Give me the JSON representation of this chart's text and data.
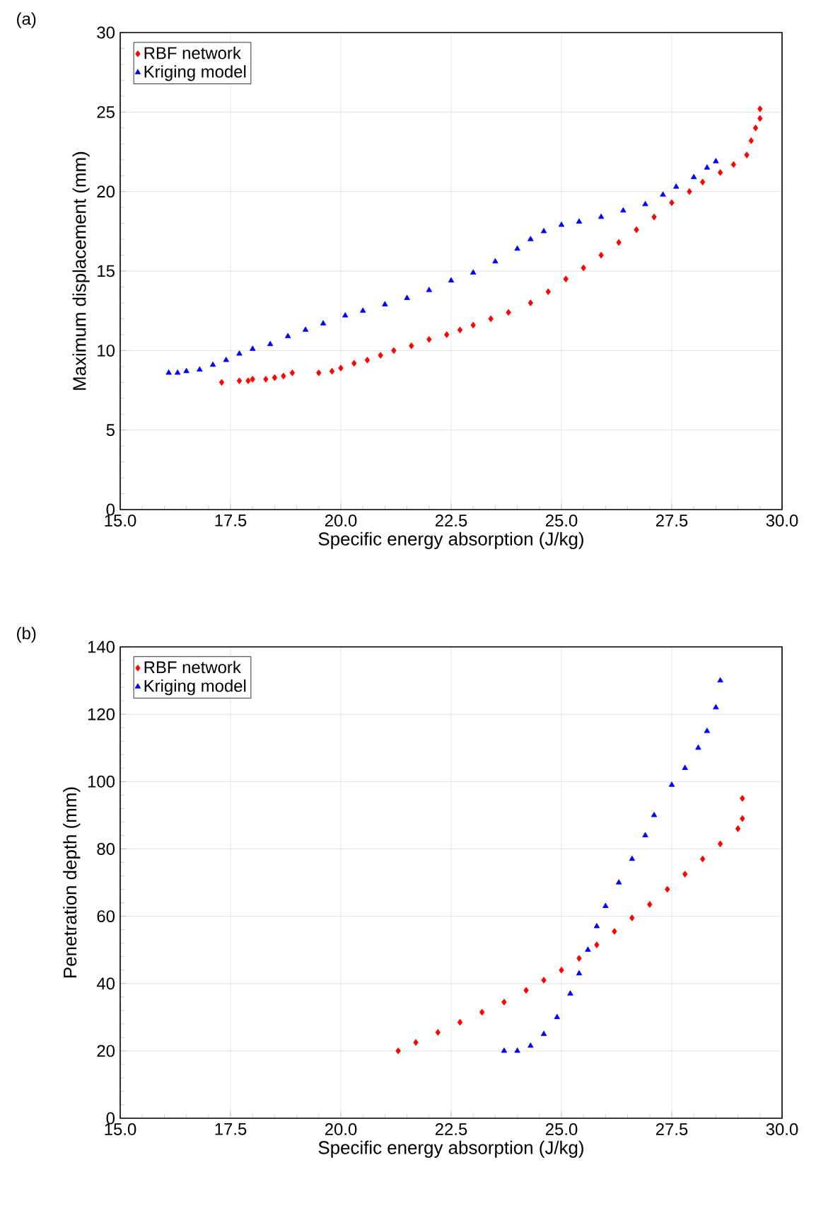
{
  "chart_data": [
    {
      "type": "scatter",
      "title": "(a)",
      "xlabel": "Specific energy absorption (J/kg)",
      "ylabel": "Maximum displacement (mm)",
      "xlim": [
        15,
        30
      ],
      "ylim": [
        0,
        30
      ],
      "xticks": [
        {
          "value": 15,
          "label": "15.0"
        },
        {
          "value": 17.5,
          "label": "17.5"
        },
        {
          "value": 20,
          "label": "20.0"
        },
        {
          "value": 22.5,
          "label": "22.5"
        },
        {
          "value": 25,
          "label": "25.0"
        },
        {
          "value": 27.5,
          "label": "27.5"
        },
        {
          "value": 30,
          "label": "30.0"
        }
      ],
      "yticks": [
        0,
        5,
        10,
        15,
        20,
        25,
        30
      ],
      "grid": true,
      "legend": "top left",
      "series": [
        {
          "name": "RBF network",
          "color": "#ff0000",
          "marker": "diamond",
          "x": [
            17.3,
            17.7,
            17.9,
            18.0,
            18.3,
            18.5,
            18.7,
            18.9,
            19.5,
            19.8,
            20.0,
            20.3,
            20.6,
            20.9,
            21.2,
            21.6,
            22.0,
            22.4,
            22.7,
            23.0,
            23.4,
            23.8,
            24.3,
            24.7,
            25.1,
            25.5,
            25.9,
            26.3,
            26.7,
            27.1,
            27.5,
            27.9,
            28.2,
            28.6,
            28.9,
            29.2,
            29.3,
            29.4,
            29.5,
            29.5
          ],
          "values": [
            8.0,
            8.1,
            8.1,
            8.2,
            8.2,
            8.3,
            8.4,
            8.6,
            8.6,
            8.7,
            8.9,
            9.2,
            9.4,
            9.7,
            10.0,
            10.3,
            10.7,
            11.0,
            11.3,
            11.6,
            12.0,
            12.4,
            13.0,
            13.7,
            14.5,
            15.2,
            16.0,
            16.8,
            17.6,
            18.4,
            19.3,
            20.0,
            20.6,
            21.2,
            21.7,
            22.3,
            23.2,
            24.0,
            24.6,
            25.2
          ]
        },
        {
          "name": "Kriging model",
          "color": "#0000ff",
          "marker": "triangle",
          "x": [
            16.1,
            16.3,
            16.5,
            16.8,
            17.1,
            17.4,
            17.7,
            18.0,
            18.4,
            18.8,
            19.2,
            19.6,
            20.1,
            20.5,
            21.0,
            21.5,
            22.0,
            22.5,
            23.0,
            23.5,
            24.0,
            24.3,
            24.6,
            25.0,
            25.4,
            25.9,
            26.4,
            26.9,
            27.3,
            27.6,
            28.0,
            28.3,
            28.5
          ],
          "values": [
            8.6,
            8.6,
            8.7,
            8.8,
            9.1,
            9.4,
            9.8,
            10.1,
            10.4,
            10.9,
            11.3,
            11.7,
            12.2,
            12.5,
            12.9,
            13.3,
            13.8,
            14.4,
            14.9,
            15.6,
            16.4,
            17.0,
            17.5,
            17.9,
            18.1,
            18.4,
            18.8,
            19.2,
            19.8,
            20.3,
            20.9,
            21.5,
            21.9
          ]
        }
      ]
    },
    {
      "type": "scatter",
      "title": "(b)",
      "xlabel": "Specific energy absorption (J/kg)",
      "ylabel": "Penetration depth (mm)",
      "xlim": [
        15,
        30
      ],
      "ylim": [
        0,
        140
      ],
      "xticks": [
        {
          "value": 15,
          "label": "15.0"
        },
        {
          "value": 17.5,
          "label": "17.5"
        },
        {
          "value": 20,
          "label": "20.0"
        },
        {
          "value": 22.5,
          "label": "22.5"
        },
        {
          "value": 25,
          "label": "25.0"
        },
        {
          "value": 27.5,
          "label": "27.5"
        },
        {
          "value": 30,
          "label": "30.0"
        }
      ],
      "yticks": [
        0,
        20,
        40,
        60,
        80,
        100,
        120,
        140
      ],
      "grid": true,
      "legend": "top left",
      "series": [
        {
          "name": "RBF network",
          "color": "#ff0000",
          "marker": "diamond",
          "x": [
            21.3,
            21.7,
            22.2,
            22.7,
            23.2,
            23.7,
            24.2,
            24.6,
            25.0,
            25.4,
            25.8,
            26.2,
            26.6,
            27.0,
            27.4,
            27.8,
            28.2,
            28.6,
            29.0,
            29.1,
            29.1
          ],
          "values": [
            20,
            22.5,
            25.5,
            28.5,
            31.5,
            34.5,
            38,
            41,
            44,
            47.5,
            51.5,
            55.5,
            59.5,
            63.5,
            68,
            72.5,
            77,
            81.5,
            86,
            89,
            95
          ]
        },
        {
          "name": "Kriging model",
          "color": "#0000ff",
          "marker": "triangle",
          "x": [
            23.7,
            24.0,
            24.3,
            24.6,
            24.9,
            25.2,
            25.4,
            25.6,
            25.8,
            26.0,
            26.3,
            26.6,
            26.9,
            27.1,
            27.5,
            27.8,
            28.1,
            28.3,
            28.5,
            28.6
          ],
          "values": [
            20,
            20,
            21.5,
            25,
            30,
            37,
            43,
            50,
            57,
            63,
            70,
            77,
            84,
            90,
            99,
            104,
            110,
            115,
            122,
            130
          ]
        }
      ]
    }
  ]
}
